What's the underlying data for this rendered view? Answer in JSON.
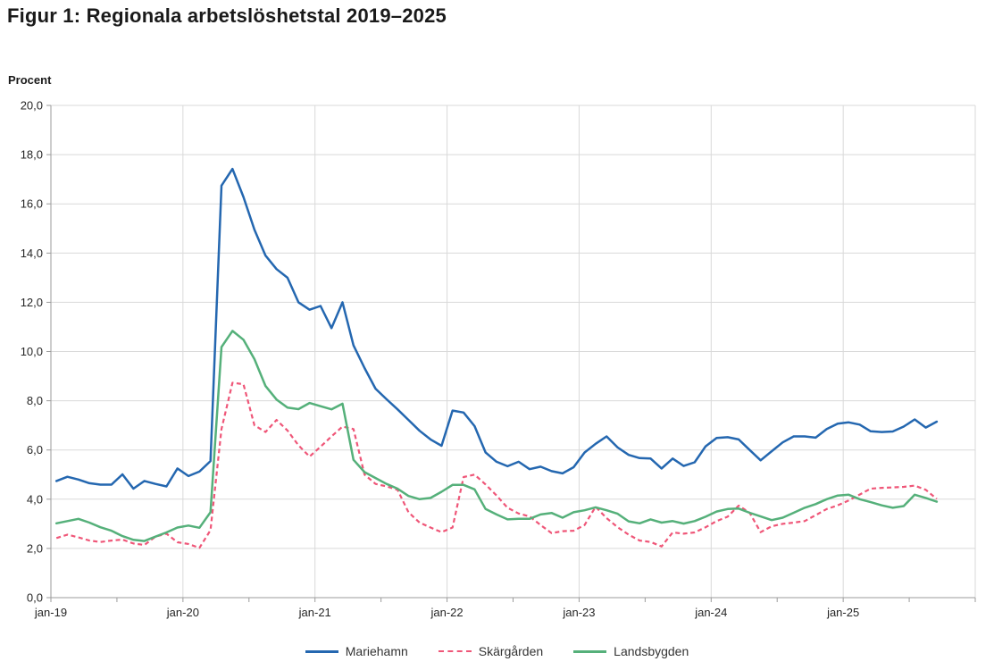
{
  "page": {
    "title": "Figur 1: Regionala arbetslöshetstal 2019–2025"
  },
  "chart_data": {
    "type": "line",
    "title": "Figur 1: Regionala arbetslöshetstal 2019–2025",
    "y_axis_title": "Procent",
    "ylim": [
      0,
      20
    ],
    "y_tick_step": 2,
    "y_tick_labels": [
      "20,0",
      "18,0",
      "16,0",
      "14,0",
      "12,0",
      "10,0",
      "8,0",
      "6,0",
      "4,0",
      "2,0",
      "0,0"
    ],
    "x_tick_labels": [
      "jan-19",
      "jan-20",
      "jan-21",
      "jan-22",
      "jan-23",
      "jan-24",
      "jan-25"
    ],
    "x_minor_ticks": "every 6 months (jul unlabeled)",
    "x_frequency": "monthly",
    "x_range_of_data": "jan-19 to sep-25",
    "x_axis_extends_to": "jan-26",
    "grid": "light horizontal every 2.0 and vertical at each january",
    "legend_position": "bottom-center",
    "axis_color": "#9b9b9b",
    "gridline_color": "#d9d9d9",
    "series": [
      {
        "name": "Mariehamn",
        "color": "#2467b0",
        "style": "solid",
        "values": [
          4.74,
          4.91,
          4.8,
          4.65,
          4.59,
          4.59,
          5.01,
          4.43,
          4.74,
          4.62,
          4.52,
          5.25,
          4.94,
          5.12,
          5.55,
          16.74,
          17.42,
          16.28,
          14.95,
          13.9,
          13.35,
          13.0,
          12.0,
          11.7,
          11.85,
          10.95,
          12.0,
          10.25,
          9.33,
          8.49,
          8.06,
          7.65,
          7.22,
          6.78,
          6.43,
          6.17,
          7.6,
          7.52,
          6.97,
          5.9,
          5.52,
          5.34,
          5.52,
          5.22,
          5.32,
          5.14,
          5.05,
          5.3,
          5.9,
          6.25,
          6.55,
          6.1,
          5.8,
          5.67,
          5.65,
          5.25,
          5.65,
          5.35,
          5.5,
          6.15,
          6.49,
          6.52,
          6.43,
          6.0,
          5.58,
          5.95,
          6.31,
          6.55,
          6.55,
          6.5,
          6.85,
          7.07,
          7.12,
          7.03,
          6.76,
          6.73,
          6.75,
          6.95,
          7.24,
          6.91,
          7.15
        ]
      },
      {
        "name": "Skärgården",
        "color": "#ef5678",
        "style": "dashed",
        "values": [
          2.42,
          2.56,
          2.45,
          2.32,
          2.26,
          2.32,
          2.36,
          2.2,
          2.14,
          2.48,
          2.6,
          2.25,
          2.18,
          2.02,
          2.74,
          6.85,
          8.73,
          8.67,
          7.0,
          6.73,
          7.22,
          6.79,
          6.19,
          5.73,
          6.13,
          6.55,
          6.95,
          6.85,
          5.0,
          4.62,
          4.52,
          4.38,
          3.47,
          3.05,
          2.85,
          2.66,
          2.85,
          4.9,
          5.0,
          4.6,
          4.15,
          3.65,
          3.42,
          3.3,
          2.95,
          2.62,
          2.7,
          2.72,
          2.95,
          3.69,
          3.23,
          2.86,
          2.56,
          2.32,
          2.26,
          2.08,
          2.65,
          2.6,
          2.65,
          2.86,
          3.11,
          3.29,
          3.74,
          3.45,
          2.66,
          2.9,
          3.0,
          3.05,
          3.11,
          3.35,
          3.6,
          3.75,
          3.95,
          4.19,
          4.43,
          4.46,
          4.48,
          4.5,
          4.55,
          4.38,
          4.01
        ]
      },
      {
        "name": "Landsbygden",
        "color": "#55b07a",
        "style": "solid",
        "values": [
          3.02,
          3.11,
          3.2,
          3.05,
          2.86,
          2.72,
          2.5,
          2.35,
          2.3,
          2.48,
          2.65,
          2.85,
          2.93,
          2.84,
          3.47,
          10.18,
          10.84,
          10.48,
          9.69,
          8.6,
          8.05,
          7.72,
          7.66,
          7.91,
          7.78,
          7.65,
          7.88,
          5.6,
          5.1,
          4.86,
          4.62,
          4.43,
          4.13,
          4.0,
          4.05,
          4.3,
          4.58,
          4.58,
          4.4,
          3.6,
          3.38,
          3.18,
          3.2,
          3.2,
          3.38,
          3.44,
          3.25,
          3.47,
          3.55,
          3.67,
          3.55,
          3.41,
          3.1,
          3.02,
          3.18,
          3.05,
          3.11,
          3.01,
          3.11,
          3.29,
          3.5,
          3.6,
          3.62,
          3.45,
          3.3,
          3.15,
          3.25,
          3.45,
          3.65,
          3.8,
          4.0,
          4.15,
          4.18,
          4.0,
          3.88,
          3.75,
          3.65,
          3.72,
          4.18,
          4.05,
          3.9
        ]
      }
    ]
  }
}
